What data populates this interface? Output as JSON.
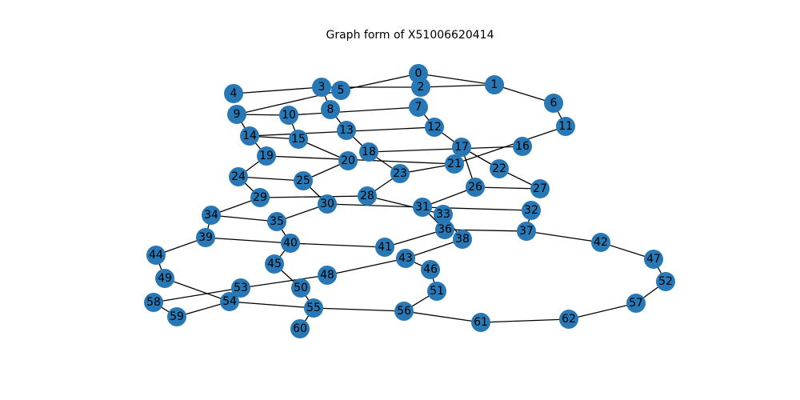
{
  "title": "Graph form of X51006620414",
  "colors": {
    "node": "#2878b5",
    "edge": "#000000",
    "label": "#000000",
    "background": "#ffffff"
  },
  "nodes": [
    "0",
    "1",
    "2",
    "3",
    "4",
    "5",
    "6",
    "7",
    "8",
    "9",
    "10",
    "11",
    "12",
    "13",
    "14",
    "15",
    "16",
    "17",
    "18",
    "19",
    "20",
    "21",
    "22",
    "23",
    "24",
    "25",
    "26",
    "27",
    "28",
    "29",
    "30",
    "31",
    "32",
    "33",
    "34",
    "35",
    "36",
    "37",
    "38",
    "39",
    "40",
    "41",
    "42",
    "43",
    "44",
    "45",
    "46",
    "47",
    "48",
    "49",
    "50",
    "51",
    "52",
    "53",
    "54",
    "55",
    "56",
    "57",
    "58",
    "59",
    "60",
    "61",
    "62"
  ],
  "edges": [
    [
      "0",
      "1"
    ],
    [
      "0",
      "5"
    ],
    [
      "1",
      "2"
    ],
    [
      "1",
      "6"
    ],
    [
      "2",
      "3"
    ],
    [
      "3",
      "4"
    ],
    [
      "3",
      "8"
    ],
    [
      "5",
      "9"
    ],
    [
      "6",
      "11"
    ],
    [
      "7",
      "10"
    ],
    [
      "7",
      "12"
    ],
    [
      "8",
      "13"
    ],
    [
      "9",
      "10"
    ],
    [
      "9",
      "14"
    ],
    [
      "10",
      "15"
    ],
    [
      "11",
      "21"
    ],
    [
      "12",
      "14"
    ],
    [
      "12",
      "17"
    ],
    [
      "13",
      "18"
    ],
    [
      "14",
      "19"
    ],
    [
      "15",
      "20"
    ],
    [
      "15",
      "14"
    ],
    [
      "16",
      "18"
    ],
    [
      "17",
      "22"
    ],
    [
      "17",
      "26"
    ],
    [
      "18",
      "23"
    ],
    [
      "19",
      "21"
    ],
    [
      "19",
      "24"
    ],
    [
      "20",
      "25"
    ],
    [
      "21",
      "23"
    ],
    [
      "22",
      "27"
    ],
    [
      "24",
      "25"
    ],
    [
      "24",
      "29"
    ],
    [
      "25",
      "30"
    ],
    [
      "26",
      "27"
    ],
    [
      "26",
      "31"
    ],
    [
      "28",
      "23"
    ],
    [
      "28",
      "29"
    ],
    [
      "28",
      "33"
    ],
    [
      "29",
      "34"
    ],
    [
      "30",
      "31"
    ],
    [
      "30",
      "35"
    ],
    [
      "31",
      "32"
    ],
    [
      "31",
      "36"
    ],
    [
      "32",
      "37"
    ],
    [
      "34",
      "35"
    ],
    [
      "34",
      "39"
    ],
    [
      "35",
      "40"
    ],
    [
      "36",
      "37"
    ],
    [
      "36",
      "41"
    ],
    [
      "37",
      "42"
    ],
    [
      "38",
      "43"
    ],
    [
      "39",
      "40"
    ],
    [
      "39",
      "44"
    ],
    [
      "40",
      "41"
    ],
    [
      "40",
      "45"
    ],
    [
      "42",
      "47"
    ],
    [
      "43",
      "46"
    ],
    [
      "43",
      "48"
    ],
    [
      "44",
      "49"
    ],
    [
      "45",
      "50"
    ],
    [
      "46",
      "51"
    ],
    [
      "47",
      "52"
    ],
    [
      "48",
      "53"
    ],
    [
      "49",
      "54"
    ],
    [
      "50",
      "55"
    ],
    [
      "51",
      "56"
    ],
    [
      "52",
      "57"
    ],
    [
      "53",
      "58"
    ],
    [
      "53",
      "54"
    ],
    [
      "54",
      "55"
    ],
    [
      "54",
      "59"
    ],
    [
      "55",
      "56"
    ],
    [
      "55",
      "60"
    ],
    [
      "56",
      "61"
    ],
    [
      "57",
      "62"
    ],
    [
      "58",
      "59"
    ],
    [
      "61",
      "62"
    ],
    [
      "33",
      "38"
    ]
  ]
}
